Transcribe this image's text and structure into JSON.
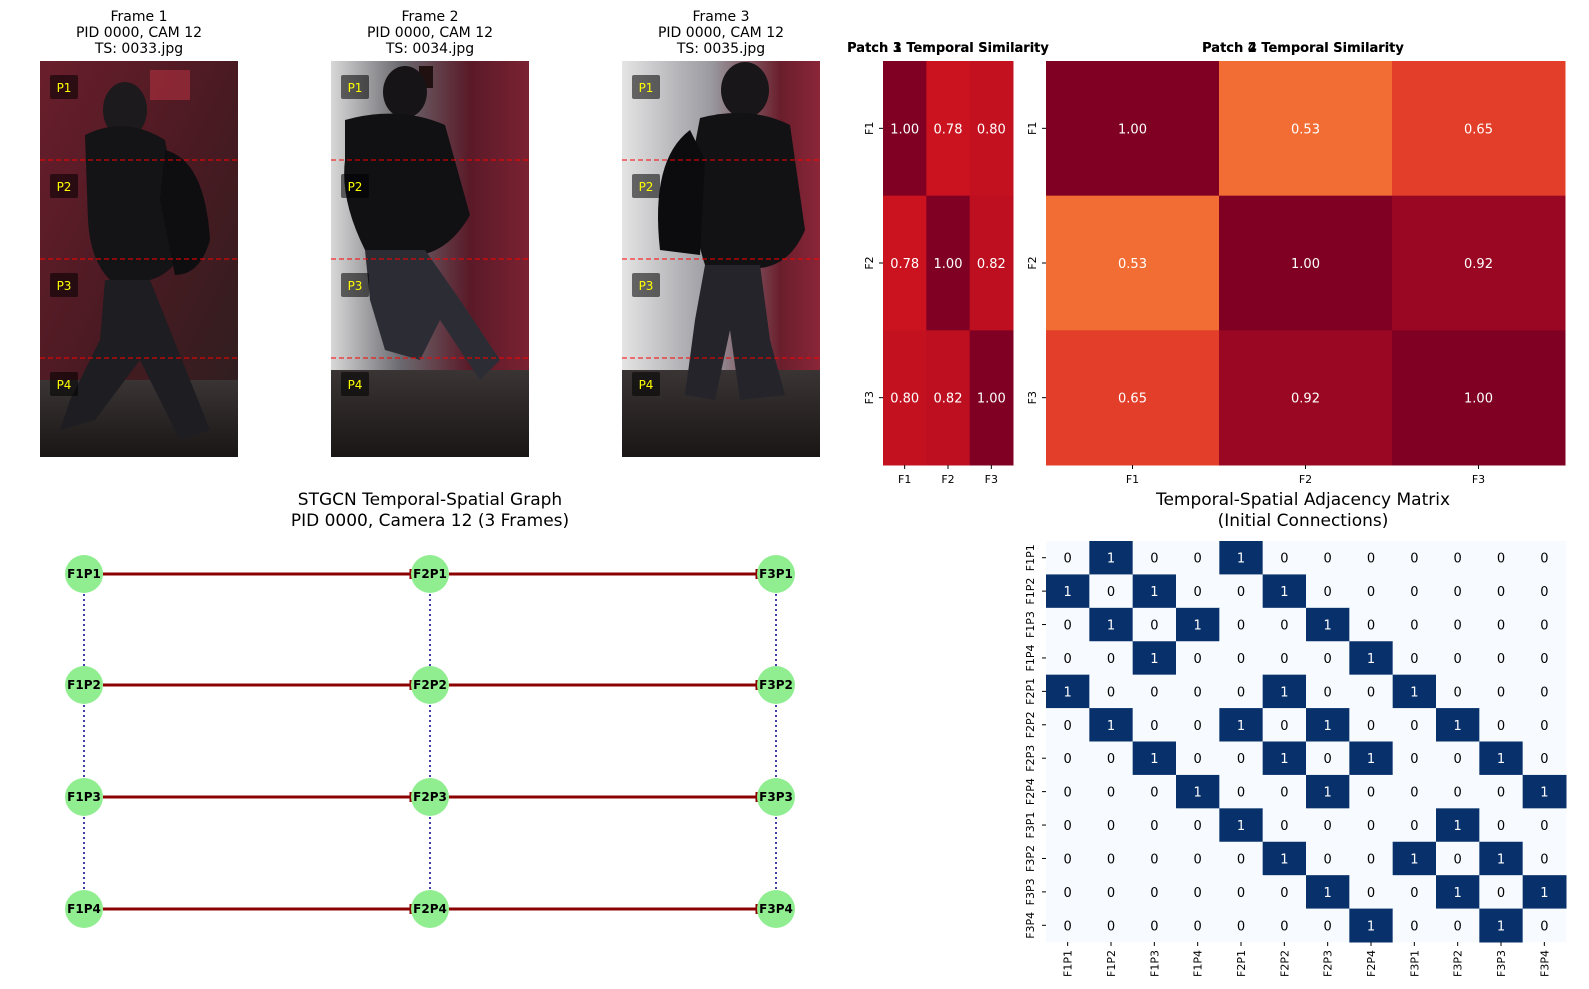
{
  "frames": [
    {
      "title": "Frame 1",
      "line2": "PID 0000, CAM 12",
      "line3": "TS: 0033.jpg"
    },
    {
      "title": "Frame 2",
      "line2": "PID 0000, CAM 12",
      "line3": "TS: 0034.jpg"
    },
    {
      "title": "Frame 3",
      "line2": "PID 0000, CAM 12",
      "line3": "TS: 0035.jpg"
    }
  ],
  "patch_labels": [
    "P1",
    "P2",
    "P3",
    "P4"
  ],
  "colors": {
    "heat_high": "#7f0023",
    "heat_mid": "#d4151f",
    "heat_low": "#fd8d3c",
    "adj_on": "#08306b",
    "adj_off": "#f7fbff",
    "node": "#90ee90",
    "temporal_edge": "#8b0000",
    "spatial_edge": "#00008b",
    "split_line": "#ff0000",
    "patch_label": "#ffff00"
  },
  "chart_data": [
    {
      "type": "heatmap",
      "title": "Patch 1 Temporal Similarity",
      "title_overlay": "Patch 3 Temporal Similarity",
      "x": [
        "F1",
        "F2",
        "F3"
      ],
      "y": [
        "F1",
        "F2",
        "F3"
      ],
      "values": [
        [
          1.0,
          0.78,
          0.8
        ],
        [
          0.78,
          1.0,
          0.82
        ],
        [
          0.8,
          0.82,
          1.0
        ]
      ]
    },
    {
      "type": "heatmap",
      "title": "Patch 2 Temporal Similarity",
      "title_overlay": "Patch 4 Temporal Similarity",
      "x": [
        "F1",
        "F2",
        "F3"
      ],
      "y": [
        "F1",
        "F2",
        "F3"
      ],
      "values": [
        [
          1.0,
          0.53,
          0.65
        ],
        [
          0.53,
          1.0,
          0.92
        ],
        [
          0.65,
          0.92,
          1.0
        ]
      ]
    },
    {
      "type": "graph",
      "title": "STGCN Temporal-Spatial Graph",
      "subtitle": "PID 0000, Camera 12 (3 Frames)",
      "nodes": [
        [
          "F1P1",
          "F2P1",
          "F3P1"
        ],
        [
          "F1P2",
          "F2P2",
          "F3P2"
        ],
        [
          "F1P3",
          "F2P3",
          "F3P3"
        ],
        [
          "F1P4",
          "F2P4",
          "F3P4"
        ]
      ]
    },
    {
      "type": "heatmap",
      "title": "Temporal-Spatial Adjacency Matrix",
      "subtitle": "(Initial Connections)",
      "labels": [
        "F1P1",
        "F1P2",
        "F1P3",
        "F1P4",
        "F2P1",
        "F2P2",
        "F2P3",
        "F2P4",
        "F3P1",
        "F3P2",
        "F3P3",
        "F3P4"
      ],
      "values": [
        [
          0,
          1,
          0,
          0,
          1,
          0,
          0,
          0,
          0,
          0,
          0,
          0
        ],
        [
          1,
          0,
          1,
          0,
          0,
          1,
          0,
          0,
          0,
          0,
          0,
          0
        ],
        [
          0,
          1,
          0,
          1,
          0,
          0,
          1,
          0,
          0,
          0,
          0,
          0
        ],
        [
          0,
          0,
          1,
          0,
          0,
          0,
          0,
          1,
          0,
          0,
          0,
          0
        ],
        [
          1,
          0,
          0,
          0,
          0,
          1,
          0,
          0,
          1,
          0,
          0,
          0
        ],
        [
          0,
          1,
          0,
          0,
          1,
          0,
          1,
          0,
          0,
          1,
          0,
          0
        ],
        [
          0,
          0,
          1,
          0,
          0,
          1,
          0,
          1,
          0,
          0,
          1,
          0
        ],
        [
          0,
          0,
          0,
          1,
          0,
          0,
          1,
          0,
          0,
          0,
          0,
          1
        ],
        [
          0,
          0,
          0,
          0,
          1,
          0,
          0,
          0,
          0,
          1,
          0,
          0
        ],
        [
          0,
          0,
          0,
          0,
          0,
          1,
          0,
          0,
          1,
          0,
          1,
          0
        ],
        [
          0,
          0,
          0,
          0,
          0,
          0,
          1,
          0,
          0,
          1,
          0,
          1
        ],
        [
          0,
          0,
          0,
          0,
          0,
          0,
          0,
          1,
          0,
          0,
          1,
          0
        ]
      ]
    }
  ]
}
